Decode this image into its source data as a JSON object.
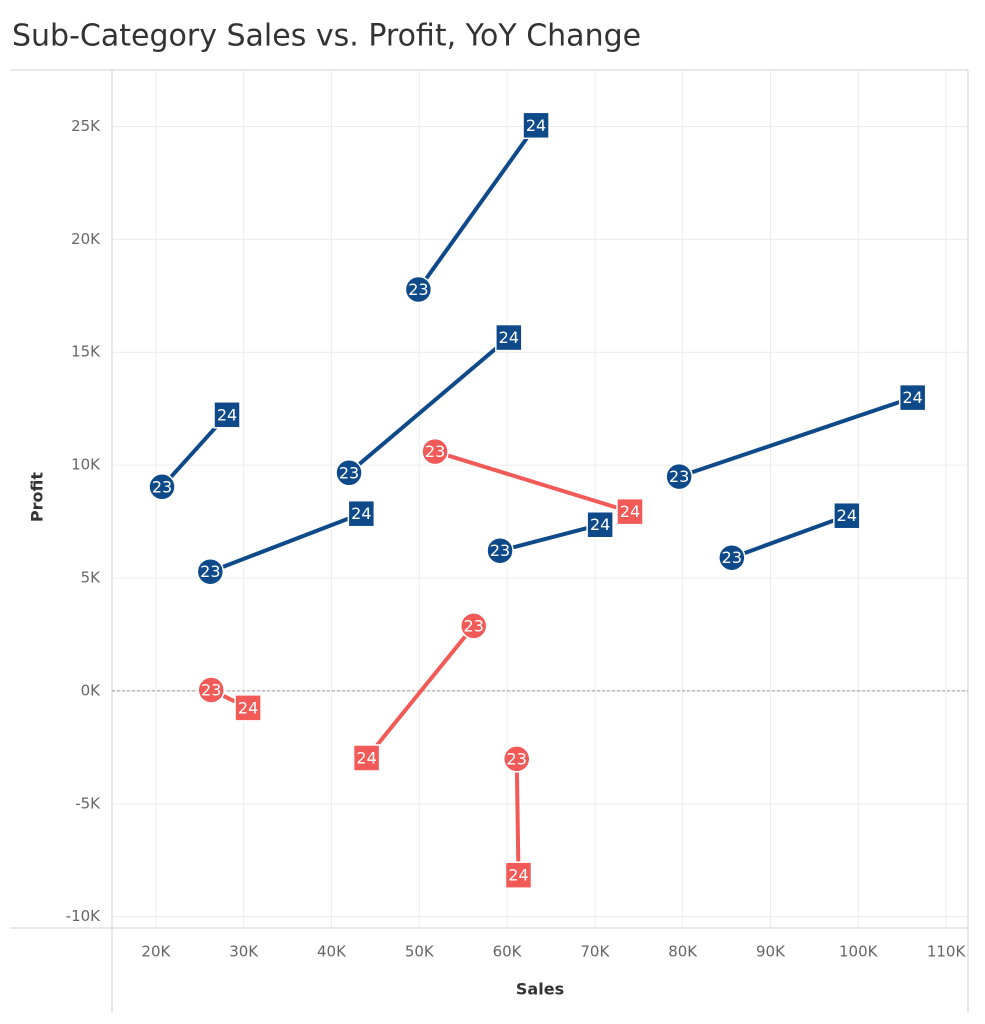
{
  "chart_data": {
    "type": "connected_scatter",
    "title": "Sub-Category Sales vs. Profit, YoY Change",
    "x_label": "Sales",
    "y_label": "Profit",
    "point_labels": [
      "23",
      "24"
    ],
    "markers": [
      "circle",
      "square"
    ],
    "grid": true,
    "zero_line": true,
    "xlim": [
      15000,
      112500
    ],
    "xticks": [
      {
        "value": 20000,
        "label": "20K"
      },
      {
        "value": 30000,
        "label": "30K"
      },
      {
        "value": 40000,
        "label": "40K"
      },
      {
        "value": 50000,
        "label": "50K"
      },
      {
        "value": 60000,
        "label": "60K"
      },
      {
        "value": 70000,
        "label": "70K"
      },
      {
        "value": 80000,
        "label": "80K"
      },
      {
        "value": 90000,
        "label": "90K"
      },
      {
        "value": 100000,
        "label": "100K"
      },
      {
        "value": 110000,
        "label": "110K"
      }
    ],
    "ylim": [
      -10500,
      27500
    ],
    "yticks": [
      {
        "value": -10000,
        "label": "-10K"
      },
      {
        "value": -5000,
        "label": "-5K"
      },
      {
        "value": 0,
        "label": "0K"
      },
      {
        "value": 5000,
        "label": "5K"
      },
      {
        "value": 10000,
        "label": "10K"
      },
      {
        "value": 15000,
        "label": "15K"
      },
      {
        "value": 20000,
        "label": "20K"
      },
      {
        "value": 25000,
        "label": "25K"
      }
    ],
    "series": [
      {
        "color": "#0e4a8a",
        "x": [
          49900,
          63300
        ],
        "values": [
          17780,
          25050
        ]
      },
      {
        "color": "#0e4a8a",
        "x": [
          42000,
          60200
        ],
        "values": [
          9660,
          15650
        ]
      },
      {
        "color": "#0e4a8a",
        "x": [
          20700,
          28100
        ],
        "values": [
          9040,
          12230
        ]
      },
      {
        "color": "#0e4a8a",
        "x": [
          26200,
          43400
        ],
        "values": [
          5280,
          7850
        ]
      },
      {
        "color": "#0e4a8a",
        "x": [
          59200,
          70600
        ],
        "values": [
          6210,
          7360
        ]
      },
      {
        "color": "#0e4a8a",
        "x": [
          79600,
          106200
        ],
        "values": [
          9490,
          12990
        ]
      },
      {
        "color": "#0e4a8a",
        "x": [
          85600,
          98700
        ],
        "values": [
          5900,
          7760
        ]
      },
      {
        "color": "#f25a58",
        "x": [
          51800,
          74000
        ],
        "values": [
          10600,
          7940
        ]
      },
      {
        "color": "#f25a58",
        "x": [
          26300,
          30500
        ],
        "values": [
          40,
          -750
        ]
      },
      {
        "color": "#f25a58",
        "x": [
          56200,
          44000
        ],
        "values": [
          2880,
          -2970
        ]
      },
      {
        "color": "#f25a58",
        "x": [
          61100,
          61300
        ],
        "values": [
          -3010,
          -8160
        ]
      }
    ]
  }
}
